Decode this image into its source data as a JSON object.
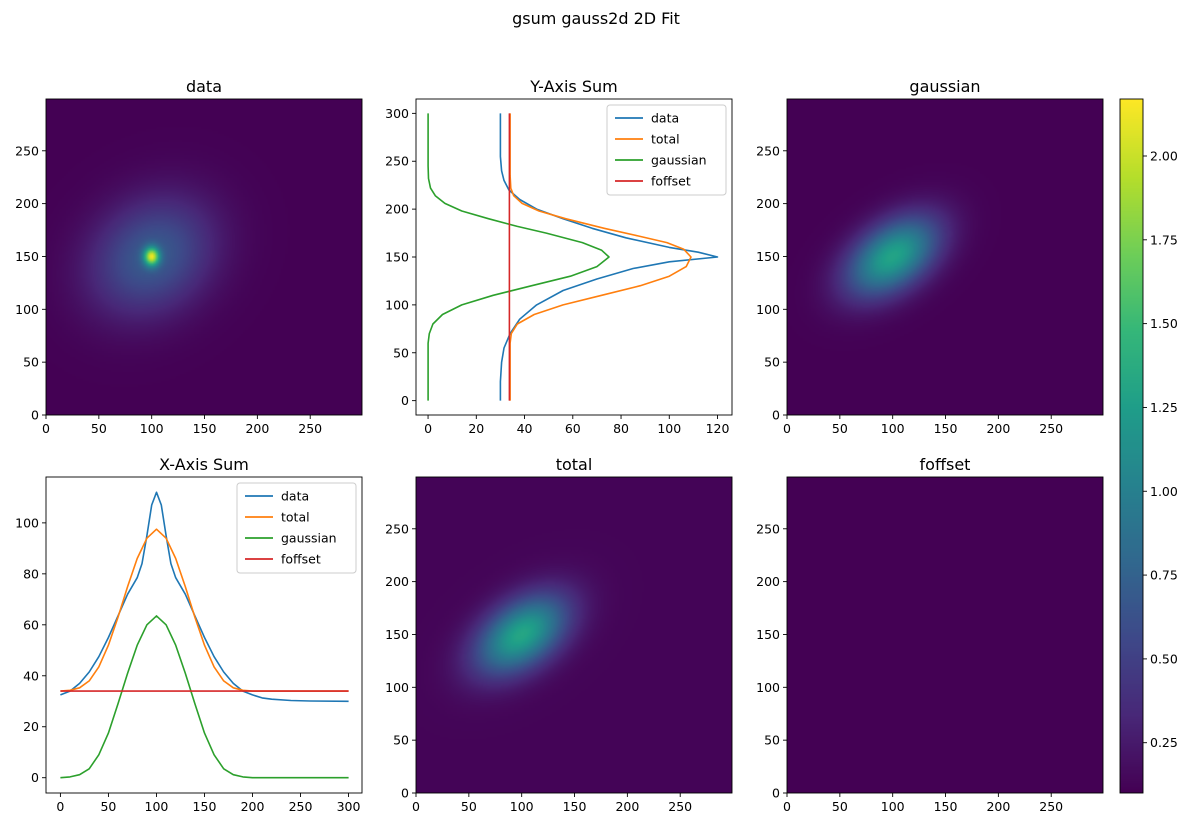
{
  "figure": {
    "suptitle": "gsum gauss2d 2D Fit"
  },
  "chart_data": [
    {
      "panel": "data",
      "type": "heatmap",
      "title": "data",
      "xlim": [
        0,
        299
      ],
      "ylim": [
        0,
        299
      ],
      "xticks": [
        0,
        50,
        100,
        150,
        200,
        250
      ],
      "yticks": [
        0,
        50,
        100,
        150,
        200,
        250
      ],
      "field": {
        "offset": 0.1,
        "components": [
          {
            "cx": 100,
            "cy": 150,
            "sx": 5,
            "sy": 6,
            "rho": 0,
            "amp": 1.45
          },
          {
            "cx": 100,
            "cy": 150,
            "sx": 40,
            "sy": 38,
            "rho": 0.2,
            "amp": 0.6
          }
        ]
      },
      "colormap": "viridis",
      "vmin": 0.1,
      "vmax": 2.17
    },
    {
      "panel": "y_sum",
      "type": "line",
      "title": "Y-Axis Sum",
      "xlim": [
        -5,
        126
      ],
      "ylim": [
        -15,
        315
      ],
      "xticks": [
        0,
        20,
        40,
        60,
        80,
        100,
        120
      ],
      "yticks": [
        0,
        50,
        100,
        150,
        200,
        250,
        300
      ],
      "legend": "upper right",
      "series": [
        {
          "name": "data",
          "color": "#1f77b4",
          "points": [
            [
              30,
              0
            ],
            [
              30,
              20
            ],
            [
              30.5,
              40
            ],
            [
              31.5,
              55
            ],
            [
              34,
              70
            ],
            [
              38,
              85
            ],
            [
              45,
              100
            ],
            [
              56,
              115
            ],
            [
              70,
              127
            ],
            [
              85,
              138
            ],
            [
              100,
              145
            ],
            [
              120,
              150
            ],
            [
              112,
              155
            ],
            [
              100,
              160
            ],
            [
              82,
              170
            ],
            [
              68,
              180
            ],
            [
              56,
              190
            ],
            [
              45,
              200
            ],
            [
              38,
              210
            ],
            [
              33.5,
              220
            ],
            [
              31.5,
              230
            ],
            [
              30.5,
              240
            ],
            [
              30,
              255
            ],
            [
              30,
              300
            ]
          ]
        },
        {
          "name": "total",
          "color": "#ff7f0e",
          "points": [
            [
              34,
              0
            ],
            [
              34,
              60
            ],
            [
              34.5,
              70
            ],
            [
              37,
              80
            ],
            [
              44,
              90
            ],
            [
              56,
              100
            ],
            [
              72,
              110
            ],
            [
              88,
              120
            ],
            [
              100,
              130
            ],
            [
              107,
              140
            ],
            [
              109,
              150
            ],
            [
              106,
              158
            ],
            [
              99,
              165
            ],
            [
              87,
              172
            ],
            [
              73,
              180
            ],
            [
              57,
              190
            ],
            [
              46,
              198
            ],
            [
              39,
              206
            ],
            [
              35.5,
              214
            ],
            [
              34.3,
              222
            ],
            [
              34,
              235
            ],
            [
              34,
              300
            ]
          ]
        },
        {
          "name": "gaussian",
          "color": "#2ca02c",
          "points": [
            [
              0,
              0
            ],
            [
              0,
              60
            ],
            [
              0.5,
              70
            ],
            [
              2,
              80
            ],
            [
              6,
              90
            ],
            [
              14,
              100
            ],
            [
              27,
              110
            ],
            [
              43,
              120
            ],
            [
              59,
              130
            ],
            [
              70,
              140
            ],
            [
              75,
              150
            ],
            [
              72,
              157
            ],
            [
              64,
              165
            ],
            [
              49,
              175
            ],
            [
              37,
              182
            ],
            [
              25,
              190
            ],
            [
              14,
              198
            ],
            [
              7,
              206
            ],
            [
              3,
              214
            ],
            [
              1,
              222
            ],
            [
              0.2,
              232
            ],
            [
              0,
              245
            ],
            [
              0,
              300
            ]
          ]
        },
        {
          "name": "foffset",
          "color": "#d62728",
          "points": [
            [
              33.7,
              0
            ],
            [
              33.7,
              300
            ]
          ]
        }
      ]
    },
    {
      "panel": "gaussian",
      "type": "heatmap",
      "title": "gaussian",
      "xlim": [
        0,
        299
      ],
      "ylim": [
        0,
        299
      ],
      "xticks": [
        0,
        50,
        100,
        150,
        200,
        250
      ],
      "yticks": [
        0,
        50,
        100,
        150,
        200,
        250
      ],
      "field": {
        "offset": 0.1,
        "components": [
          {
            "cx": 100,
            "cy": 150,
            "sx": 30,
            "sy": 26,
            "rho": 0.45,
            "amp": 1.2
          }
        ]
      },
      "colormap": "viridis",
      "vmin": 0.1,
      "vmax": 2.17
    },
    {
      "panel": "x_sum",
      "type": "line",
      "title": "X-Axis Sum",
      "xlim": [
        -15,
        314
      ],
      "ylim": [
        -6,
        118
      ],
      "xticks": [
        0,
        50,
        100,
        150,
        200,
        250,
        300
      ],
      "yticks": [
        0,
        20,
        40,
        60,
        80,
        100
      ],
      "legend": "upper right",
      "series": [
        {
          "name": "data",
          "color": "#1f77b4",
          "points": [
            [
              0,
              32.5
            ],
            [
              10,
              34
            ],
            [
              20,
              37
            ],
            [
              30,
              41.5
            ],
            [
              40,
              47.5
            ],
            [
              50,
              55
            ],
            [
              60,
              63.5
            ],
            [
              70,
              72
            ],
            [
              80,
              78.5
            ],
            [
              85,
              84
            ],
            [
              90,
              95
            ],
            [
              95,
              107
            ],
            [
              100,
              112
            ],
            [
              105,
              107
            ],
            [
              110,
              95
            ],
            [
              115,
              84
            ],
            [
              120,
              78.5
            ],
            [
              130,
              72
            ],
            [
              140,
              63.5
            ],
            [
              150,
              55
            ],
            [
              160,
              47.5
            ],
            [
              170,
              41.5
            ],
            [
              180,
              37
            ],
            [
              190,
              34
            ],
            [
              200,
              32.5
            ],
            [
              210,
              31.3
            ],
            [
              220,
              30.8
            ],
            [
              240,
              30.3
            ],
            [
              260,
              30.1
            ],
            [
              300,
              30
            ]
          ]
        },
        {
          "name": "total",
          "color": "#ff7f0e",
          "points": [
            [
              0,
              34
            ],
            [
              10,
              34.3
            ],
            [
              20,
              35.3
            ],
            [
              30,
              38
            ],
            [
              40,
              43.5
            ],
            [
              50,
              52
            ],
            [
              60,
              63
            ],
            [
              70,
              75
            ],
            [
              80,
              86
            ],
            [
              90,
              94
            ],
            [
              100,
              97.5
            ],
            [
              110,
              94
            ],
            [
              120,
              86
            ],
            [
              130,
              75
            ],
            [
              140,
              63
            ],
            [
              150,
              52
            ],
            [
              160,
              43.5
            ],
            [
              170,
              38
            ],
            [
              180,
              35.3
            ],
            [
              190,
              34.3
            ],
            [
              200,
              34
            ],
            [
              300,
              34
            ]
          ]
        },
        {
          "name": "gaussian",
          "color": "#2ca02c",
          "points": [
            [
              0,
              0
            ],
            [
              10,
              0.3
            ],
            [
              20,
              1.2
            ],
            [
              30,
              3.5
            ],
            [
              40,
              9
            ],
            [
              50,
              17.5
            ],
            [
              60,
              29
            ],
            [
              70,
              41
            ],
            [
              80,
              52
            ],
            [
              90,
              60
            ],
            [
              100,
              63.5
            ],
            [
              110,
              60
            ],
            [
              120,
              52
            ],
            [
              130,
              41
            ],
            [
              140,
              29
            ],
            [
              150,
              17.5
            ],
            [
              160,
              9
            ],
            [
              170,
              3.5
            ],
            [
              180,
              1.2
            ],
            [
              190,
              0.3
            ],
            [
              200,
              0
            ],
            [
              300,
              0
            ]
          ]
        },
        {
          "name": "foffset",
          "color": "#d62728",
          "points": [
            [
              0,
              34
            ],
            [
              300,
              34
            ]
          ]
        }
      ]
    },
    {
      "panel": "total",
      "type": "heatmap",
      "title": "total",
      "xlim": [
        0,
        299
      ],
      "ylim": [
        0,
        299
      ],
      "xticks": [
        0,
        50,
        100,
        150,
        200,
        250
      ],
      "yticks": [
        0,
        50,
        100,
        150,
        200,
        250
      ],
      "field": {
        "offset": 0.12,
        "components": [
          {
            "cx": 100,
            "cy": 150,
            "sx": 30,
            "sy": 26,
            "rho": 0.45,
            "amp": 1.2
          }
        ]
      },
      "colormap": "viridis",
      "vmin": 0.1,
      "vmax": 2.17
    },
    {
      "panel": "foffset",
      "type": "heatmap",
      "title": "foffset",
      "xlim": [
        0,
        299
      ],
      "ylim": [
        0,
        299
      ],
      "xticks": [
        0,
        50,
        100,
        150,
        200,
        250
      ],
      "yticks": [
        0,
        50,
        100,
        150,
        200,
        250
      ],
      "field": {
        "offset": 0.1,
        "components": []
      },
      "colormap": "viridis",
      "vmin": 0.1,
      "vmax": 2.17
    }
  ],
  "colorbar": {
    "vmin": 0.1,
    "vmax": 2.17,
    "ticks": [
      0.25,
      0.5,
      0.75,
      1.0,
      1.25,
      1.5,
      1.75,
      2.0
    ],
    "tick_labels": [
      "0.25",
      "0.50",
      "0.75",
      "1.00",
      "1.25",
      "1.50",
      "1.75",
      "2.00"
    ],
    "colormap": "viridis"
  }
}
